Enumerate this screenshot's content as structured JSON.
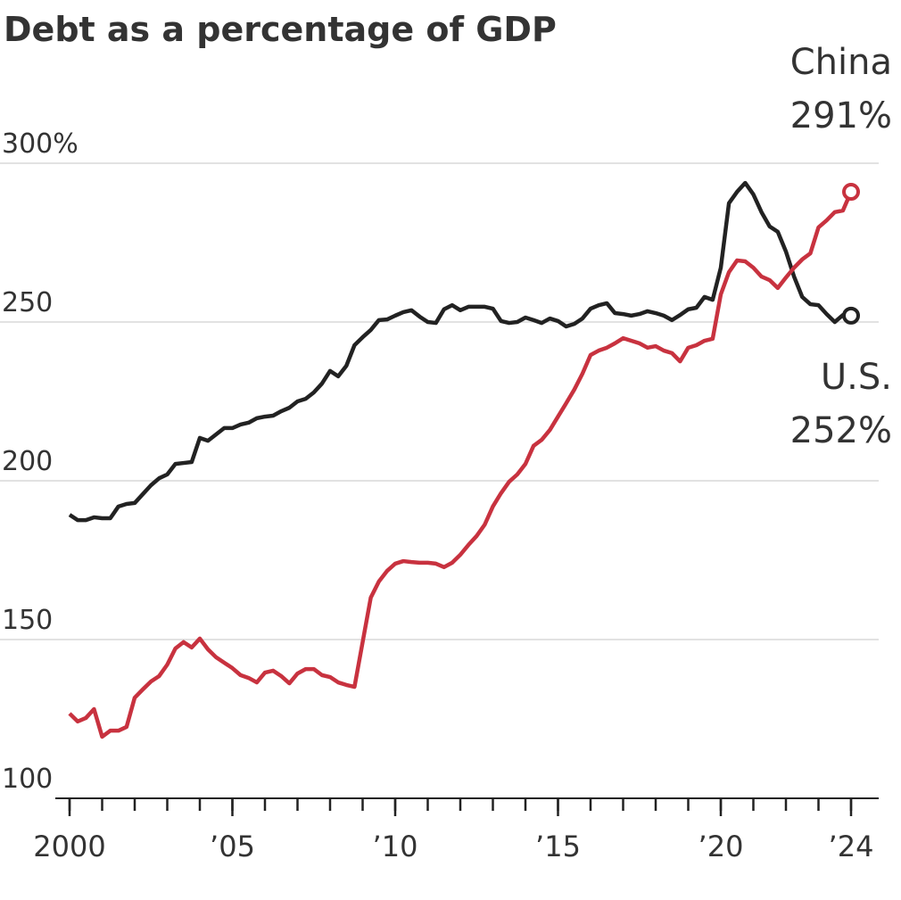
{
  "chart_data": {
    "type": "line",
    "title": "Debt as a percentage of GDP",
    "x": [
      2000,
      2000.25,
      2000.5,
      2000.75,
      2001,
      2001.25,
      2001.5,
      2001.75,
      2002,
      2002.25,
      2002.5,
      2002.75,
      2003,
      2003.25,
      2003.5,
      2003.75,
      2004,
      2004.25,
      2004.5,
      2004.75,
      2005,
      2005.25,
      2005.5,
      2005.75,
      2006,
      2006.25,
      2006.5,
      2006.75,
      2007,
      2007.25,
      2007.5,
      2007.75,
      2008,
      2008.25,
      2008.5,
      2008.75,
      2009,
      2009.25,
      2009.5,
      2009.75,
      2010,
      2010.25,
      2010.5,
      2010.75,
      2011,
      2011.25,
      2011.5,
      2011.75,
      2012,
      2012.25,
      2012.5,
      2012.75,
      2013,
      2013.25,
      2013.5,
      2013.75,
      2014,
      2014.25,
      2014.5,
      2014.75,
      2015,
      2015.25,
      2015.5,
      2015.75,
      2016,
      2016.25,
      2016.5,
      2016.75,
      2017,
      2017.25,
      2017.5,
      2017.75,
      2018,
      2018.25,
      2018.5,
      2018.75,
      2019,
      2019.25,
      2019.5,
      2019.75,
      2020,
      2020.25,
      2020.5,
      2020.75,
      2021,
      2021.25,
      2021.5,
      2021.75,
      2022,
      2022.25,
      2022.5,
      2022.75,
      2023,
      2023.25,
      2023.5,
      2023.75,
      2024
    ],
    "series": [
      {
        "name": "U.S.",
        "color": "#222222",
        "end_label": "252%",
        "values": [
          189.3,
          187.6,
          187.6,
          188.5,
          188.2,
          188.2,
          191.9,
          192.7,
          193,
          195.8,
          198.6,
          200.8,
          202,
          205.3,
          205.6,
          205.9,
          213.5,
          212.6,
          214.6,
          216.6,
          216.6,
          217.7,
          218.3,
          219.7,
          220.2,
          220.5,
          221.9,
          223,
          225,
          225.8,
          227.8,
          230.6,
          234.6,
          232.9,
          236.2,
          242.7,
          245.2,
          247.5,
          250.6,
          250.8,
          252,
          253.1,
          253.7,
          251.7,
          250,
          249.7,
          254,
          255.3,
          253.7,
          254.8,
          254.8,
          254.8,
          254.2,
          250.3,
          249.7,
          250,
          251.4,
          250.6,
          249.7,
          251.1,
          250.3,
          248.6,
          249.4,
          251.1,
          254.2,
          255.3,
          255.9,
          252.8,
          252.5,
          252,
          252.5,
          253.4,
          252.8,
          252,
          250.6,
          252.2,
          254,
          254.5,
          257.9,
          257,
          267.1,
          287.4,
          291,
          293.8,
          290.2,
          284.6,
          280.1,
          278.4,
          272.2,
          264.3,
          257.9,
          255.6,
          255.3,
          252.5,
          250,
          252.2,
          252
        ]
      },
      {
        "name": "China",
        "color": "#c8323f",
        "end_label": "291%",
        "values": [
          126.7,
          124.2,
          125.3,
          128.1,
          119.4,
          121.3,
          121.3,
          122.5,
          131.7,
          134.3,
          136.8,
          138.5,
          142.1,
          147.2,
          149.2,
          147.5,
          150.3,
          146.9,
          144.4,
          142.7,
          141,
          138.8,
          137.9,
          136.5,
          139.6,
          140.2,
          138.5,
          136.2,
          139.3,
          140.7,
          140.7,
          138.8,
          138.2,
          136.5,
          135.7,
          135.1,
          149.2,
          163.2,
          168.3,
          171.6,
          173.9,
          174.7,
          174.4,
          174.2,
          174.2,
          173.9,
          172.8,
          174.2,
          176.7,
          179.8,
          182.6,
          186.2,
          191.9,
          196.1,
          199.7,
          202,
          205.3,
          211,
          212.9,
          216,
          220.2,
          224.4,
          228.7,
          233.7,
          239.6,
          241,
          241.9,
          243.3,
          244.9,
          244.1,
          243.3,
          241.9,
          242.4,
          241,
          240.2,
          237.6,
          241.9,
          242.7,
          244.1,
          244.7,
          258.7,
          265.7,
          269.4,
          269.1,
          267.1,
          264.3,
          263.2,
          260.7,
          264,
          267.1,
          269.7,
          271.6,
          279.8,
          282,
          284.6,
          285.1,
          291
        ]
      }
    ],
    "xlim": [
      2000,
      2024
    ],
    "xticks": [
      {
        "value": 2000,
        "label": "2000"
      },
      {
        "value": 2005,
        "label": "’05"
      },
      {
        "value": 2010,
        "label": "’10"
      },
      {
        "value": 2015,
        "label": "’15"
      },
      {
        "value": 2020,
        "label": "’20"
      },
      {
        "value": 2024,
        "label": "’24"
      }
    ],
    "xminorticks": [
      2000,
      2001,
      2002,
      2003,
      2004,
      2005,
      2006,
      2007,
      2008,
      2009,
      2010,
      2011,
      2012,
      2013,
      2014,
      2015,
      2016,
      2017,
      2018,
      2019,
      2020,
      2021,
      2022,
      2023,
      2024
    ],
    "ylim": [
      100,
      300
    ],
    "yticks": [
      100,
      150,
      200,
      250,
      {
        "value": 300,
        "label": "300%"
      }
    ],
    "grid": true
  }
}
